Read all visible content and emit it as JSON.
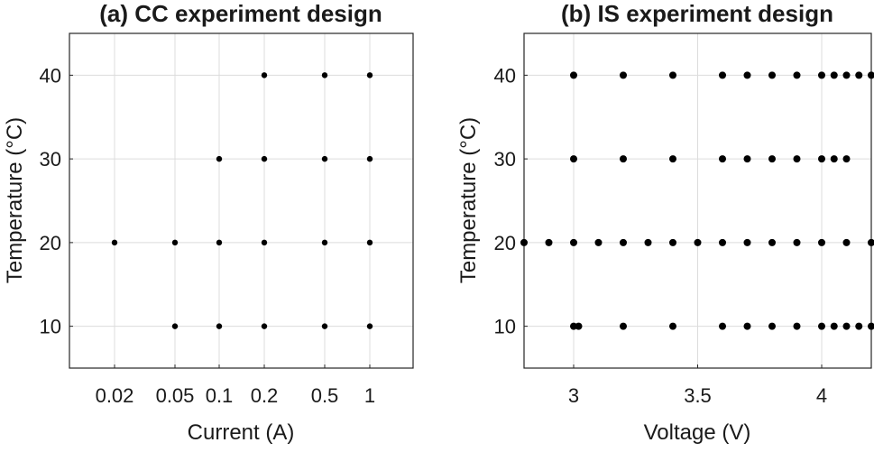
{
  "chart_data": [
    {
      "type": "scatter",
      "title": "(a) CC experiment design",
      "xlabel": "Current (A)",
      "ylabel": "Temperature (°C)",
      "x_scale": "categorical",
      "xticks": [
        "0.02",
        "0.05",
        "0.1",
        "0.2",
        "0.5",
        "1"
      ],
      "yticks": [
        10,
        20,
        30,
        40
      ],
      "ylim": [
        5,
        45
      ],
      "grid": true,
      "points": [
        {
          "x": "0.02",
          "y": 20
        },
        {
          "x": "0.05",
          "y": 20
        },
        {
          "x": "0.05",
          "y": 10
        },
        {
          "x": "0.1",
          "y": 30
        },
        {
          "x": "0.1",
          "y": 20
        },
        {
          "x": "0.1",
          "y": 10
        },
        {
          "x": "0.2",
          "y": 40
        },
        {
          "x": "0.2",
          "y": 30
        },
        {
          "x": "0.2",
          "y": 20
        },
        {
          "x": "0.2",
          "y": 10
        },
        {
          "x": "0.5",
          "y": 40
        },
        {
          "x": "0.5",
          "y": 30
        },
        {
          "x": "0.5",
          "y": 20
        },
        {
          "x": "0.5",
          "y": 10
        },
        {
          "x": "1",
          "y": 40
        },
        {
          "x": "1",
          "y": 30
        },
        {
          "x": "1",
          "y": 20
        },
        {
          "x": "1",
          "y": 10
        }
      ]
    },
    {
      "type": "scatter",
      "title": "(b) IS experiment design",
      "xlabel": "Voltage (V)",
      "ylabel": "Temperature (°C)",
      "xticks": [
        "3",
        "3.5",
        "4"
      ],
      "xlim": [
        2.8,
        4.2
      ],
      "yticks": [
        10,
        20,
        30,
        40
      ],
      "ylim": [
        5,
        45
      ],
      "grid": true,
      "rows": [
        {
          "y": 40,
          "x": [
            3.0,
            3.2,
            3.4,
            3.6,
            3.7,
            3.8,
            3.9,
            4.0,
            4.05,
            4.1,
            4.15,
            4.2
          ]
        },
        {
          "y": 30,
          "x": [
            3.0,
            3.2,
            3.4,
            3.6,
            3.7,
            3.8,
            3.9,
            4.0,
            4.05,
            4.1
          ]
        },
        {
          "y": 20,
          "x": [
            2.8,
            2.9,
            3.0,
            3.1,
            3.2,
            3.3,
            3.4,
            3.5,
            3.6,
            3.7,
            3.8,
            3.9,
            4.0,
            4.1,
            4.2
          ]
        },
        {
          "y": 10,
          "x": [
            3.0,
            3.02,
            3.2,
            3.4,
            3.6,
            3.7,
            3.8,
            3.9,
            4.0,
            4.05,
            4.1,
            4.15,
            4.2
          ]
        }
      ]
    }
  ]
}
